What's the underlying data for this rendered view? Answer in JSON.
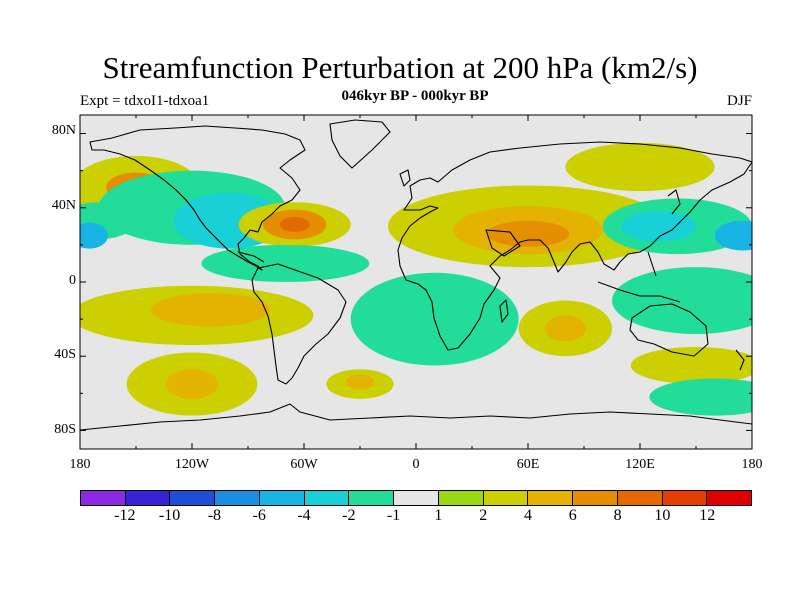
{
  "header": {
    "title": "Streamfunction Perturbation at 200 hPa (km2/s)",
    "subtitle": "046kyr BP - 000kyr BP",
    "left_label": "Expt = tdxoI1-tdxoa1",
    "right_label": "DJF"
  },
  "axes": {
    "lat_labels": [
      "80N",
      "40N",
      "0",
      "40S",
      "80S"
    ],
    "lon_labels": [
      "180",
      "120W",
      "60W",
      "0",
      "60E",
      "120E",
      "180"
    ]
  },
  "colorbar": {
    "colors": [
      "#8a2be2",
      "#3a22d8",
      "#1e4fd6",
      "#1a8ee0",
      "#17b4e4",
      "#18d0d6",
      "#22dc9a",
      "#e6e6e6",
      "#9cd80f",
      "#ccd000",
      "#e4b200",
      "#e48e00",
      "#e46a00",
      "#e43e00",
      "#e00000"
    ],
    "labels": [
      "-12",
      "-10",
      "-8",
      "-6",
      "-4",
      "-2",
      "-1",
      "1",
      "2",
      "4",
      "6",
      "8",
      "10",
      "12"
    ]
  },
  "map_data": {
    "type": "contour_map",
    "projection": "cylindrical equidistant",
    "variable": "200 hPa streamfunction anomaly",
    "units": "km2/s",
    "lon_range": [
      -180,
      180
    ],
    "lat_range": [
      -90,
      90
    ],
    "background_color": "#e6e6e6",
    "anomalies": [
      {
        "lon": -150,
        "lat": 50,
        "rx": 35,
        "ry": 18,
        "value": 2
      },
      {
        "lon": -150,
        "lat": 51,
        "rx": 16,
        "ry": 8,
        "value": 6
      },
      {
        "lon": -170,
        "lat": 33,
        "rx": 20,
        "ry": 10,
        "value": -2
      },
      {
        "lon": -175,
        "lat": 25,
        "rx": 10,
        "ry": 7,
        "value": -6
      },
      {
        "lon": -120,
        "lat": 40,
        "rx": 50,
        "ry": 20,
        "value": -2
      },
      {
        "lon": -100,
        "lat": 33,
        "rx": 30,
        "ry": 15,
        "value": -4
      },
      {
        "lon": -65,
        "lat": 31,
        "rx": 30,
        "ry": 12,
        "value": 2
      },
      {
        "lon": -65,
        "lat": 31,
        "rx": 17,
        "ry": 8,
        "value": 6
      },
      {
        "lon": -65,
        "lat": 31,
        "rx": 8,
        "ry": 4,
        "value": 8
      },
      {
        "lon": -70,
        "lat": 10,
        "rx": 45,
        "ry": 10,
        "value": -2
      },
      {
        "lon": -120,
        "lat": -18,
        "rx": 65,
        "ry": 16,
        "value": 2
      },
      {
        "lon": -110,
        "lat": -15,
        "rx": 32,
        "ry": 9,
        "value": 4
      },
      {
        "lon": -120,
        "lat": -55,
        "rx": 35,
        "ry": 17,
        "value": 2
      },
      {
        "lon": -120,
        "lat": -55,
        "rx": 14,
        "ry": 8,
        "value": 4
      },
      {
        "lon": -30,
        "lat": -55,
        "rx": 18,
        "ry": 8,
        "value": 2
      },
      {
        "lon": -30,
        "lat": -54,
        "rx": 8,
        "ry": 4,
        "value": 4
      },
      {
        "lon": 60,
        "lat": 30,
        "rx": 75,
        "ry": 22,
        "value": 2
      },
      {
        "lon": 60,
        "lat": 28,
        "rx": 40,
        "ry": 13,
        "value": 4
      },
      {
        "lon": 60,
        "lat": 26,
        "rx": 22,
        "ry": 7,
        "value": 6
      },
      {
        "lon": 10,
        "lat": -20,
        "rx": 45,
        "ry": 25,
        "value": -2
      },
      {
        "lon": 80,
        "lat": -25,
        "rx": 25,
        "ry": 15,
        "value": 2
      },
      {
        "lon": 80,
        "lat": -25,
        "rx": 11,
        "ry": 7,
        "value": 4
      },
      {
        "lon": 140,
        "lat": 30,
        "rx": 40,
        "ry": 15,
        "value": -2
      },
      {
        "lon": 130,
        "lat": 30,
        "rx": 20,
        "ry": 8,
        "value": -4
      },
      {
        "lon": 175,
        "lat": 25,
        "rx": 15,
        "ry": 8,
        "value": -6
      },
      {
        "lon": 150,
        "lat": -10,
        "rx": 45,
        "ry": 18,
        "value": -2
      },
      {
        "lon": 150,
        "lat": -45,
        "rx": 35,
        "ry": 10,
        "value": 2
      },
      {
        "lon": 160,
        "lat": -62,
        "rx": 35,
        "ry": 10,
        "value": -2
      },
      {
        "lon": 120,
        "lat": 62,
        "rx": 40,
        "ry": 13,
        "value": 2
      }
    ]
  }
}
